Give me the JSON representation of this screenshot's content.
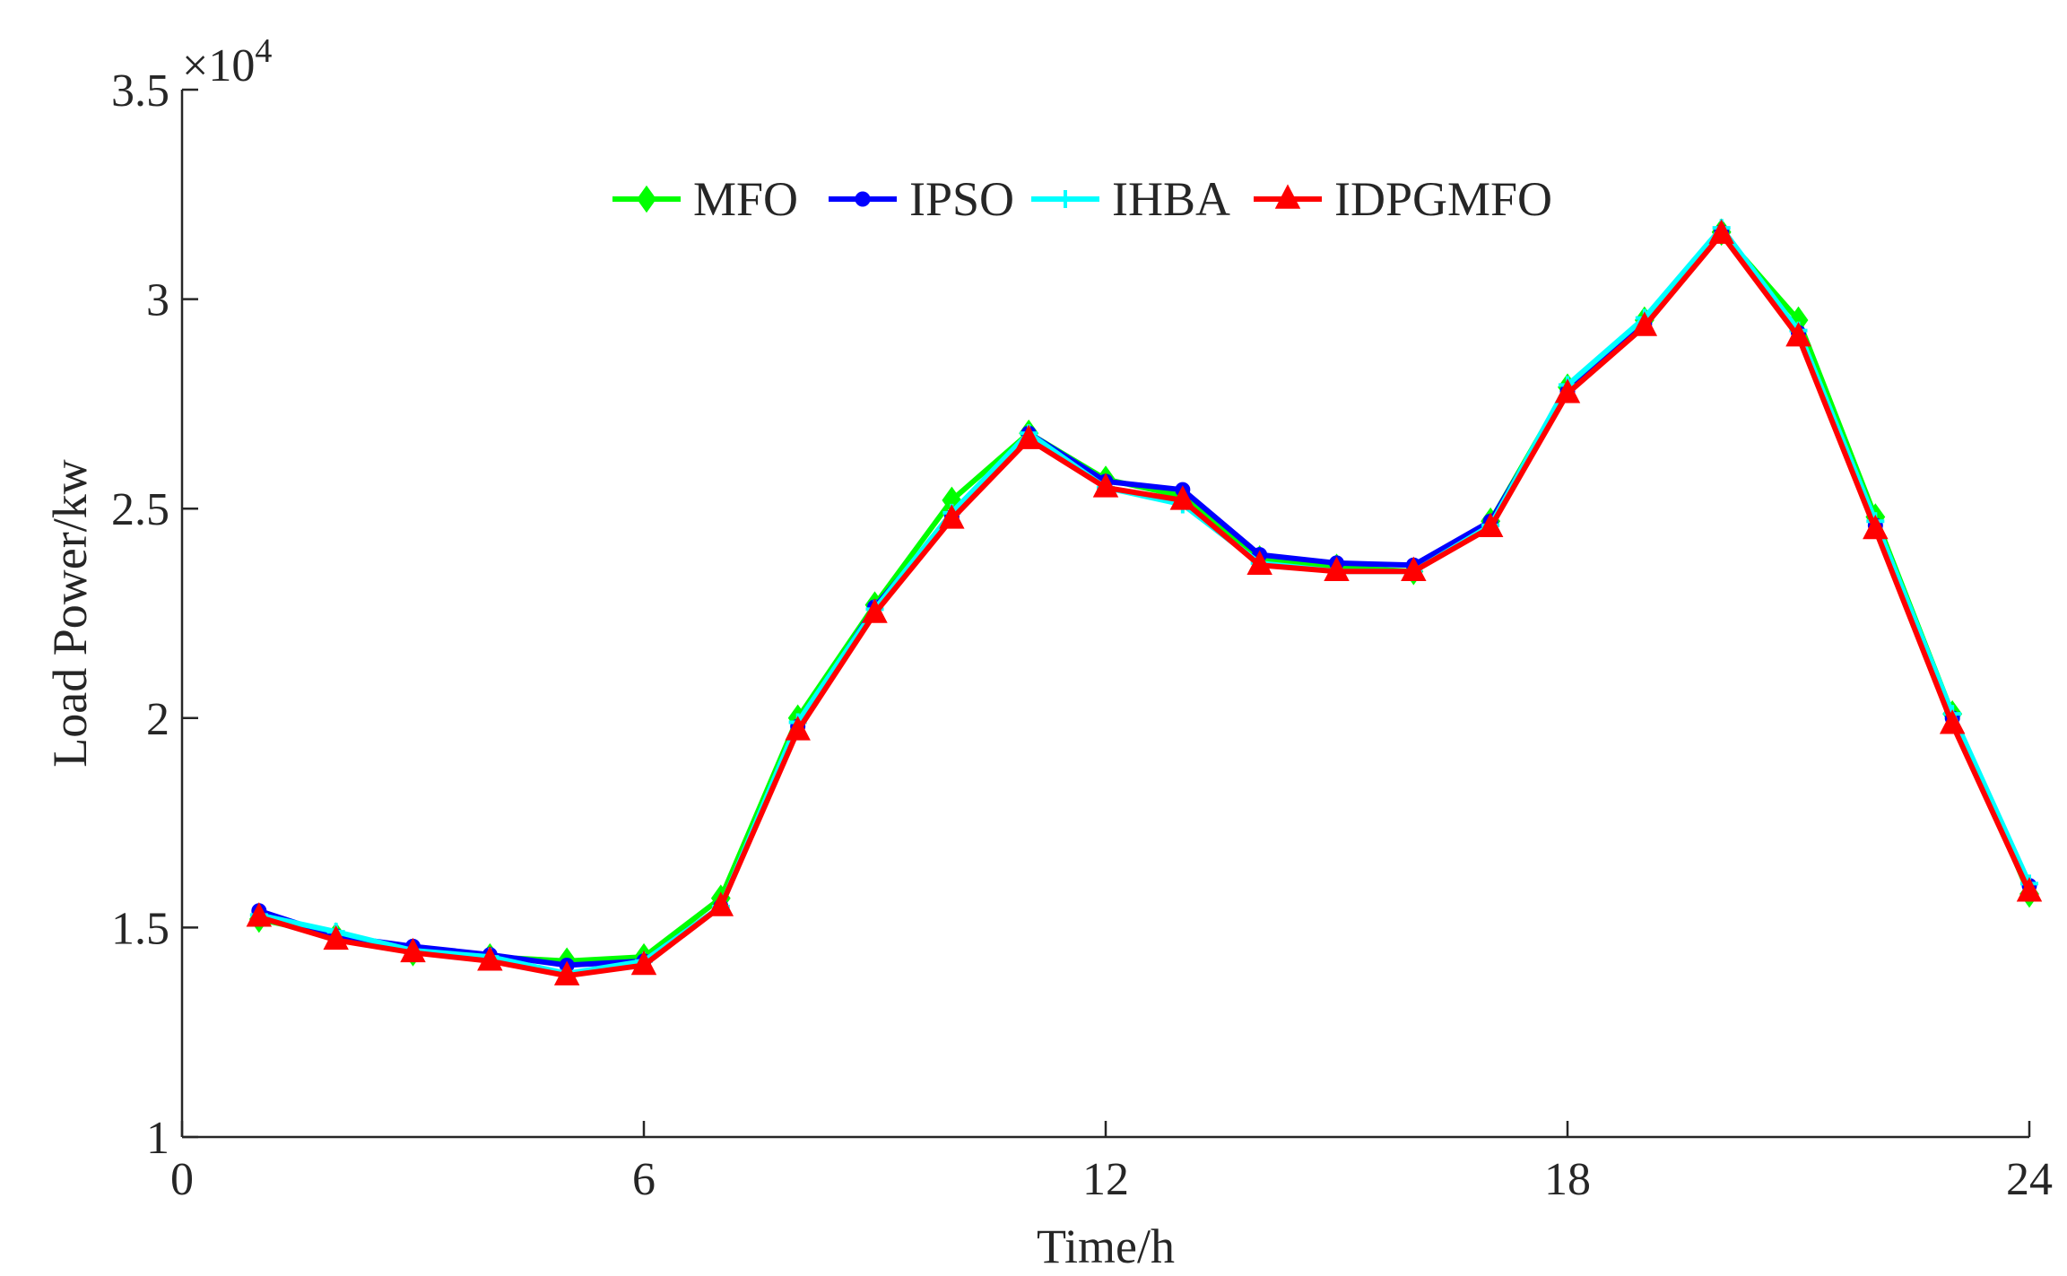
{
  "chart_data": {
    "type": "line",
    "xlabel": "Time/h",
    "ylabel": "Load Power/kw",
    "y_exponent_label": "×10",
    "y_exponent_power": "4",
    "xlim": [
      0,
      24
    ],
    "ylim": [
      1,
      3.5
    ],
    "xticks": [
      0,
      6,
      12,
      18,
      24
    ],
    "xtick_labels": [
      "0",
      "6",
      "12",
      "18",
      "24"
    ],
    "yticks": [
      1,
      1.5,
      2,
      2.5,
      3,
      3.5
    ],
    "ytick_labels": [
      "1",
      "1.5",
      "2",
      "2.5",
      "3",
      "3.5"
    ],
    "legend_position": "top-center",
    "x": [
      1,
      2,
      3,
      4,
      5,
      6,
      7,
      8,
      9,
      10,
      11,
      12,
      13,
      14,
      15,
      16,
      17,
      18,
      19,
      20,
      21,
      22,
      23,
      24
    ],
    "series": [
      {
        "name": "MFO",
        "color": "#00ff00",
        "marker": "diamond",
        "values": [
          1.52,
          1.48,
          1.44,
          1.43,
          1.42,
          1.43,
          1.57,
          2.0,
          2.27,
          2.52,
          2.68,
          2.57,
          2.53,
          2.38,
          2.36,
          2.35,
          2.47,
          2.79,
          2.95,
          3.16,
          2.95,
          2.48,
          2.01,
          1.58
        ]
      },
      {
        "name": "IPSO",
        "color": "#0000ff",
        "marker": "circle",
        "values": [
          1.54,
          1.48,
          1.455,
          1.435,
          1.41,
          1.42,
          1.55,
          1.98,
          2.265,
          2.48,
          2.68,
          2.565,
          2.545,
          2.39,
          2.37,
          2.365,
          2.47,
          2.78,
          2.94,
          3.16,
          2.92,
          2.46,
          2.0,
          1.6
        ]
      },
      {
        "name": "IHBA",
        "color": "#00ffff",
        "marker": "plus",
        "values": [
          1.53,
          1.49,
          1.445,
          1.43,
          1.39,
          1.42,
          1.55,
          1.99,
          2.26,
          2.49,
          2.68,
          2.55,
          2.51,
          2.37,
          2.35,
          2.35,
          2.46,
          2.795,
          2.955,
          3.17,
          2.925,
          2.47,
          2.01,
          1.605
        ]
      },
      {
        "name": "IDPGMFO",
        "color": "#ff0000",
        "marker": "triangle",
        "values": [
          1.525,
          1.47,
          1.44,
          1.42,
          1.385,
          1.41,
          1.55,
          1.97,
          2.25,
          2.475,
          2.665,
          2.55,
          2.52,
          2.365,
          2.35,
          2.35,
          2.455,
          2.775,
          2.935,
          3.155,
          2.91,
          2.45,
          1.985,
          1.585
        ]
      }
    ]
  }
}
